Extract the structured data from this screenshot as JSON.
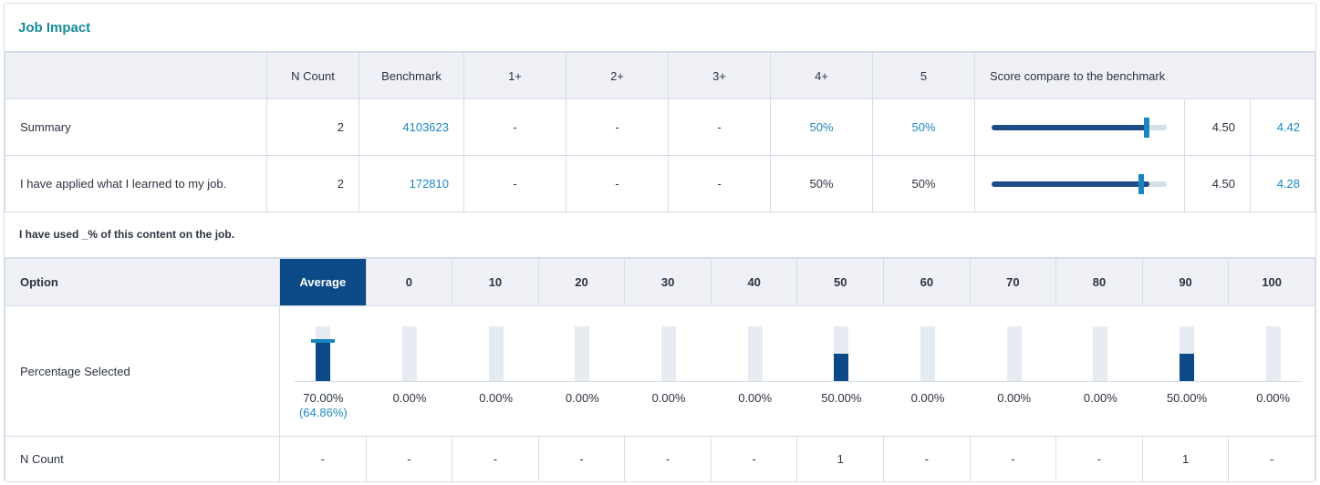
{
  "title": "Job Impact",
  "table": {
    "headers": [
      "",
      "N Count",
      "Benchmark",
      "1+",
      "2+",
      "3+",
      "4+",
      "5",
      "Score compare to the benchmark"
    ],
    "rows": [
      {
        "label": "Summary",
        "n": "2",
        "benchmark": "4103623",
        "c1": "-",
        "c2": "-",
        "c3": "-",
        "c4": "50%",
        "c5": "50%",
        "score": 4.5,
        "score_text": "4.50",
        "bench_score": 4.42,
        "bench_text": "4.42",
        "pct_link": true
      },
      {
        "label": "I have applied what I learned to my job.",
        "n": "2",
        "benchmark": "172810",
        "c1": "-",
        "c2": "-",
        "c3": "-",
        "c4": "50%",
        "c5": "50%",
        "score": 4.5,
        "score_text": "4.50",
        "bench_score": 4.28,
        "bench_text": "4.28",
        "pct_link": false
      }
    ]
  },
  "question": "I have used _% of this content on the job.",
  "options": {
    "header": "Option",
    "columns": [
      "Average",
      "0",
      "10",
      "20",
      "30",
      "40",
      "50",
      "60",
      "70",
      "80",
      "90",
      "100"
    ],
    "pct_label": "Percentage Selected",
    "pct_values": [
      70,
      0,
      0,
      0,
      0,
      0,
      50,
      0,
      0,
      0,
      50,
      0
    ],
    "pct_text": [
      "70.00%",
      "0.00%",
      "0.00%",
      "0.00%",
      "0.00%",
      "0.00%",
      "50.00%",
      "0.00%",
      "0.00%",
      "0.00%",
      "50.00%",
      "0.00%"
    ],
    "avg_benchmark": 64.86,
    "avg_benchmark_text": "(64.86%)",
    "ncount_label": "N Count",
    "ncount": [
      "-",
      "-",
      "-",
      "-",
      "-",
      "-",
      "1",
      "-",
      "-",
      "-",
      "1",
      "-"
    ]
  },
  "colors": {
    "accent": "#168b9a",
    "dark": "#0c4a87",
    "link": "#1d87c2"
  }
}
